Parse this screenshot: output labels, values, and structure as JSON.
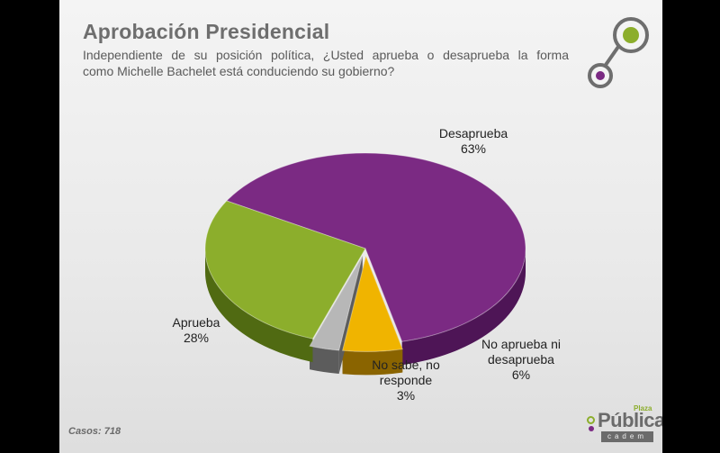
{
  "title": "Aprobación Presidencial",
  "subtitle_line1": "Independiente de su posición política, ¿Usted aprueba o desaprueba la forma",
  "subtitle_line2": "como Michelle Bachelet está conduciendo su gobierno?",
  "footer": {
    "casos": "Casos: 718"
  },
  "brand": {
    "plaza": "Plaza",
    "publica": "Pública",
    "cadem": "cadem"
  },
  "colors": {
    "purple": "#7b2a83",
    "green": "#8cae2c",
    "orange": "#f0b400",
    "gray": "#b7b7b7"
  },
  "chart_data": {
    "type": "pie",
    "title": "Aprobación Presidencial",
    "slices": [
      {
        "label": "Desaprueba",
        "value": 63,
        "display": "63%",
        "color": "#7b2a83",
        "color_dark": "#4e1556"
      },
      {
        "label": "No aprueba ni desaprueba",
        "label_line1": "No aprueba ni",
        "label_line2": "desaprueba",
        "value": 6,
        "display": "6%",
        "color": "#f0b400",
        "color_dark": "#8a6400"
      },
      {
        "label": "No sabe, no responde",
        "label_line1": "No sabe, no",
        "label_line2": "responde",
        "value": 3,
        "display": "3%",
        "color": "#b7b7b7",
        "color_dark": "#5c5c5c"
      },
      {
        "label": "Aprueba",
        "value": 28,
        "display": "28%",
        "color": "#8cae2c",
        "color_dark": "#506a12"
      }
    ]
  }
}
